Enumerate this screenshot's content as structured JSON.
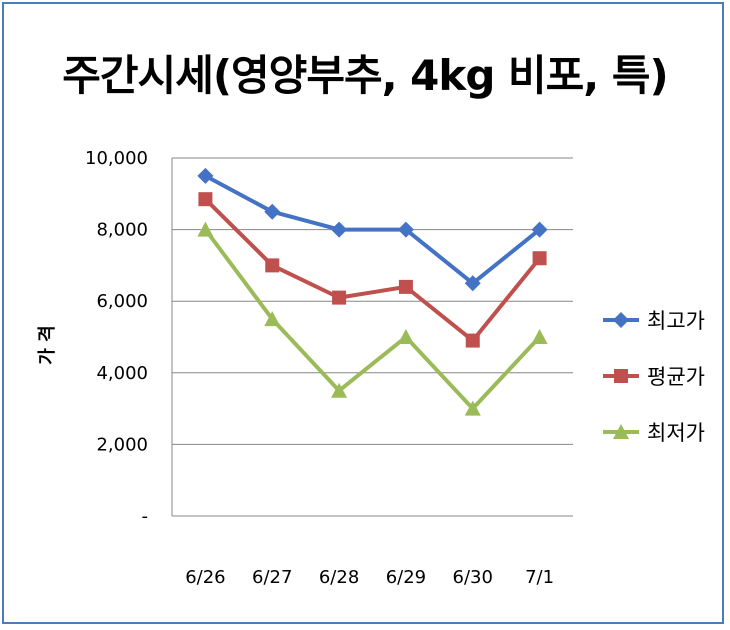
{
  "chart_data": {
    "type": "line",
    "title": "주간시세(영양부추, 4kg 비포, 특)",
    "ylabel": "가 격",
    "xlabel": "",
    "categories": [
      "6/26",
      "6/27",
      "6/28",
      "6/29",
      "6/30",
      "7/1"
    ],
    "ylim": [
      0,
      10000
    ],
    "yticks": [
      0,
      2000,
      4000,
      6000,
      8000,
      10000
    ],
    "ytick_labels": [
      "-",
      "2,000",
      "4,000",
      "6,000",
      "8,000",
      "10,000"
    ],
    "grid": true,
    "legend_position": "right",
    "series": [
      {
        "name": "최고가",
        "color": "#4472c4",
        "marker": "diamond",
        "values": [
          9500,
          8500,
          8000,
          8000,
          6500,
          8000
        ]
      },
      {
        "name": "평균가",
        "color": "#c0504d",
        "marker": "square",
        "values": [
          8850,
          7000,
          6100,
          6400,
          4900,
          7200
        ]
      },
      {
        "name": "최저가",
        "color": "#9bbb59",
        "marker": "triangle",
        "values": [
          8000,
          5500,
          3500,
          5000,
          3000,
          5000
        ]
      }
    ]
  }
}
